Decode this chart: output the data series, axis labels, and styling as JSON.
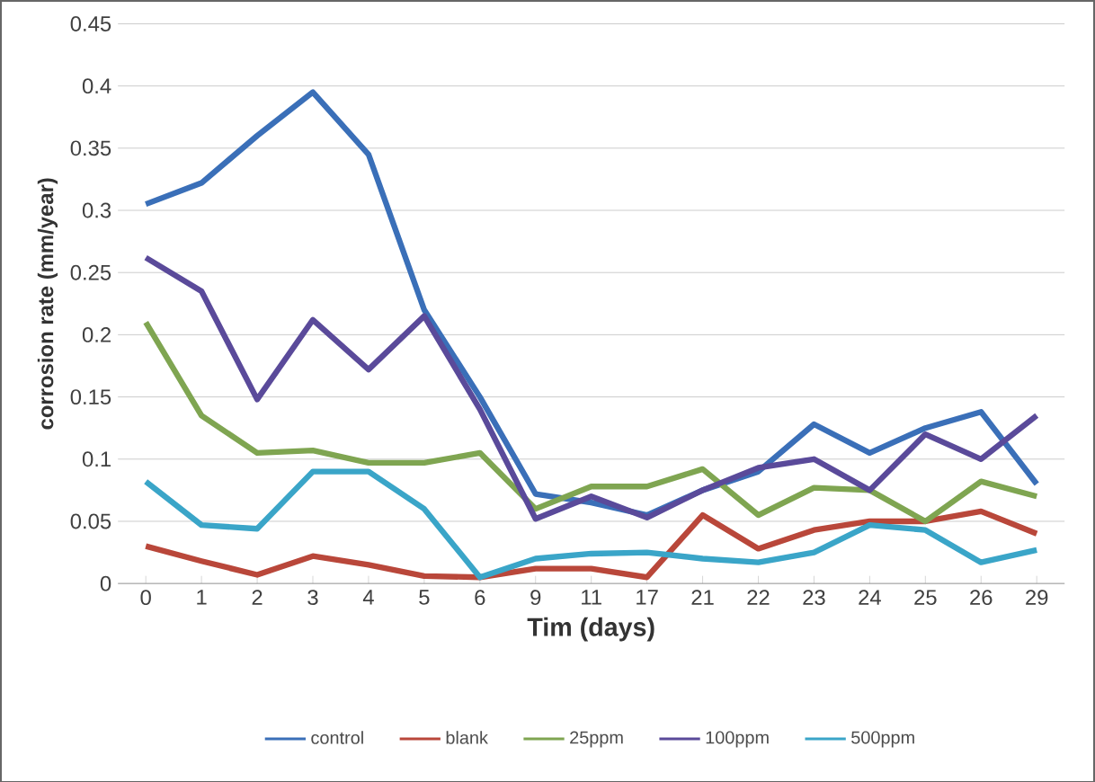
{
  "chart_data": {
    "type": "line",
    "xlabel": "Tim (days)",
    "ylabel": "corrosion rate (mm/year)",
    "categories": [
      "0",
      "1",
      "2",
      "3",
      "4",
      "5",
      "6",
      "9",
      "11",
      "17",
      "21",
      "22",
      "23",
      "24",
      "25",
      "26",
      "29"
    ],
    "series": [
      {
        "name": "control",
        "color": "#3a6fb8",
        "values": [
          0.305,
          0.322,
          0.36,
          0.395,
          0.345,
          0.22,
          0.15,
          0.072,
          0.065,
          0.055,
          0.075,
          0.09,
          0.128,
          0.105,
          0.125,
          0.138,
          0.08
        ]
      },
      {
        "name": "blank",
        "color": "#b9473a",
        "values": [
          0.03,
          0.018,
          0.007,
          0.022,
          0.015,
          0.006,
          0.005,
          0.012,
          0.012,
          0.005,
          0.055,
          0.028,
          0.043,
          0.05,
          0.05,
          0.058,
          0.04
        ]
      },
      {
        "name": "25ppm",
        "color": "#7fa551",
        "values": [
          0.21,
          0.135,
          0.105,
          0.107,
          0.097,
          0.097,
          0.105,
          0.06,
          0.078,
          0.078,
          0.092,
          0.055,
          0.077,
          0.075,
          0.05,
          0.082,
          0.07
        ]
      },
      {
        "name": "100ppm",
        "color": "#5a4a9a",
        "values": [
          0.262,
          0.235,
          0.148,
          0.212,
          0.172,
          0.215,
          0.14,
          0.052,
          0.07,
          0.053,
          0.075,
          0.093,
          0.1,
          0.075,
          0.12,
          0.1,
          0.135
        ]
      },
      {
        "name": "500ppm",
        "color": "#3aa5c8",
        "values": [
          0.082,
          0.047,
          0.044,
          0.09,
          0.09,
          0.06,
          0.005,
          0.02,
          0.024,
          0.025,
          0.02,
          0.017,
          0.025,
          0.047,
          0.043,
          0.017,
          0.027
        ]
      }
    ],
    "ylim": [
      0,
      0.45
    ],
    "yticks": [
      0,
      0.05,
      0.1,
      0.15,
      0.2,
      0.25,
      0.3,
      0.35,
      0.4,
      0.45
    ],
    "grid": "y",
    "legend": "bottom",
    "marker": "none",
    "line_style": "solid"
  }
}
